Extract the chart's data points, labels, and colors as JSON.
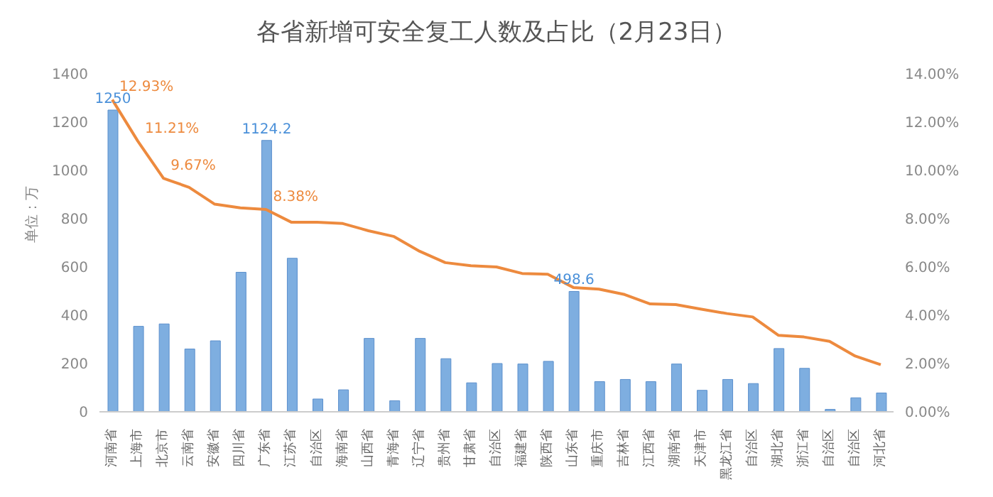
{
  "chart_data": {
    "type": "bar",
    "title": "各省新增可安全复工人数及占比（2月23日）",
    "ylabel": "单位：万",
    "categories": [
      "河南省",
      "上海市",
      "北京市",
      "云南省",
      "安徽省",
      "四川省",
      "广东省",
      "江苏省",
      "自治区",
      "海南省",
      "山西省",
      "青海省",
      "辽宁省",
      "贵州省",
      "甘肃省",
      "自治区",
      "福建省",
      "陕西省",
      "山东省",
      "重庆市",
      "吉林省",
      "江西省",
      "湖南省",
      "天津市",
      "黑龙江省",
      "自治区",
      "湖北省",
      "浙江省",
      "自治区",
      "自治区",
      "河北省"
    ],
    "series": [
      {
        "color": "#7eaee0",
        "values": [
          1250,
          354,
          364,
          260,
          294,
          578,
          1124.2,
          636,
          53,
          91,
          304,
          46,
          304,
          220,
          120,
          200,
          198,
          209,
          498.6,
          125,
          134,
          125,
          198,
          89,
          134,
          117,
          262,
          180,
          10,
          58,
          78
        ],
        "value_labels": [
          "1250",
          null,
          null,
          null,
          null,
          null,
          "1124.2",
          null,
          null,
          null,
          null,
          null,
          null,
          null,
          null,
          null,
          null,
          null,
          "498.6",
          null,
          null,
          null,
          null,
          null,
          null,
          null,
          null,
          null,
          null,
          null,
          null
        ]
      },
      {
        "type": "line",
        "axis": "y2",
        "color": "#ed8a3e",
        "values": [
          12.93,
          11.21,
          9.67,
          9.3,
          8.6,
          8.45,
          8.38,
          7.85,
          7.85,
          7.8,
          7.5,
          7.26,
          6.65,
          6.18,
          6.05,
          6.0,
          5.73,
          5.7,
          5.15,
          5.08,
          4.86,
          4.47,
          4.44,
          4.25,
          4.07,
          3.93,
          3.17,
          3.1,
          2.92,
          2.31,
          1.95
        ],
        "value_labels": [
          "12.93%",
          "11.21%",
          "9.67%",
          null,
          null,
          null,
          "8.38%",
          null,
          null,
          null,
          null,
          null,
          null,
          null,
          null,
          null,
          null,
          null,
          null,
          null,
          null,
          null,
          null,
          null,
          null,
          null,
          null,
          null,
          null,
          null,
          null
        ]
      }
    ],
    "ylim": [
      0,
      1400
    ],
    "yticks": [
      0,
      200,
      400,
      600,
      800,
      1000,
      1200,
      1400
    ],
    "y2lim": [
      0,
      14
    ],
    "y2ticks": [
      {
        "value": 0,
        "label": "0.00%"
      },
      {
        "value": 2,
        "label": "2.00%"
      },
      {
        "value": 4,
        "label": "4.00%"
      },
      {
        "value": 6,
        "label": "6.00%"
      },
      {
        "value": 8,
        "label": "8.00%"
      },
      {
        "value": 10,
        "label": "10.00%"
      },
      {
        "value": 12,
        "label": "12.00%"
      },
      {
        "value": 14,
        "label": "14.00%"
      }
    ],
    "grid": false,
    "legend": false,
    "marker": "none"
  }
}
